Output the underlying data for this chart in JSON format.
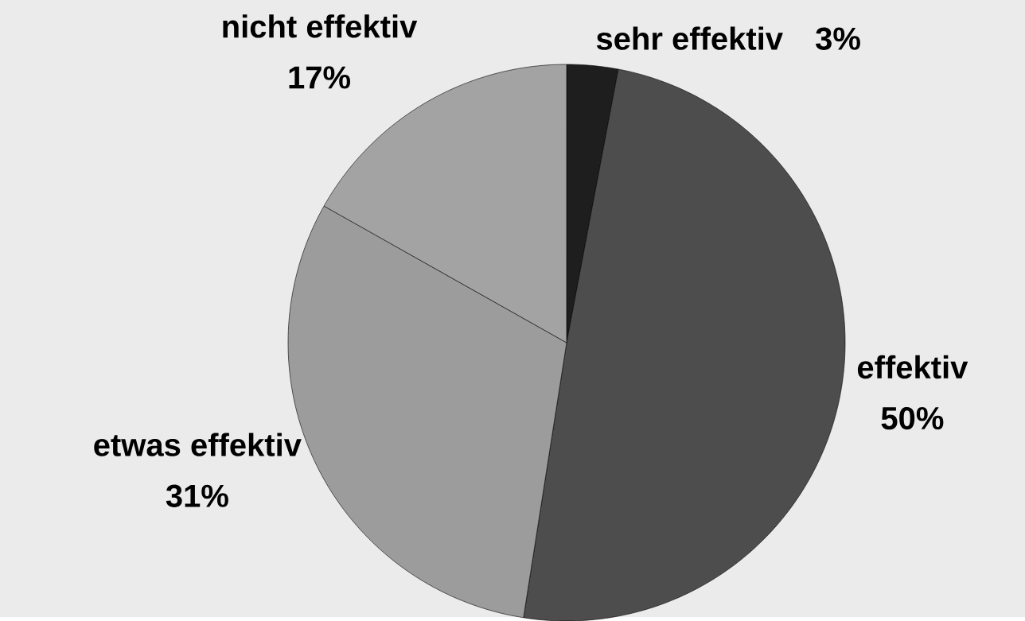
{
  "chart_data": {
    "type": "pie",
    "categories": [
      "sehr effektiv",
      "effektiv",
      "etwas effektiv",
      "nicht effektiv"
    ],
    "values": [
      3,
      50,
      31,
      17
    ],
    "colors": [
      "#1e1e1e",
      "#4d4d4d",
      "#9c9c9c",
      "#a3a3a3"
    ],
    "value_labels": [
      "3%",
      "50%",
      "31%",
      "17%"
    ]
  }
}
